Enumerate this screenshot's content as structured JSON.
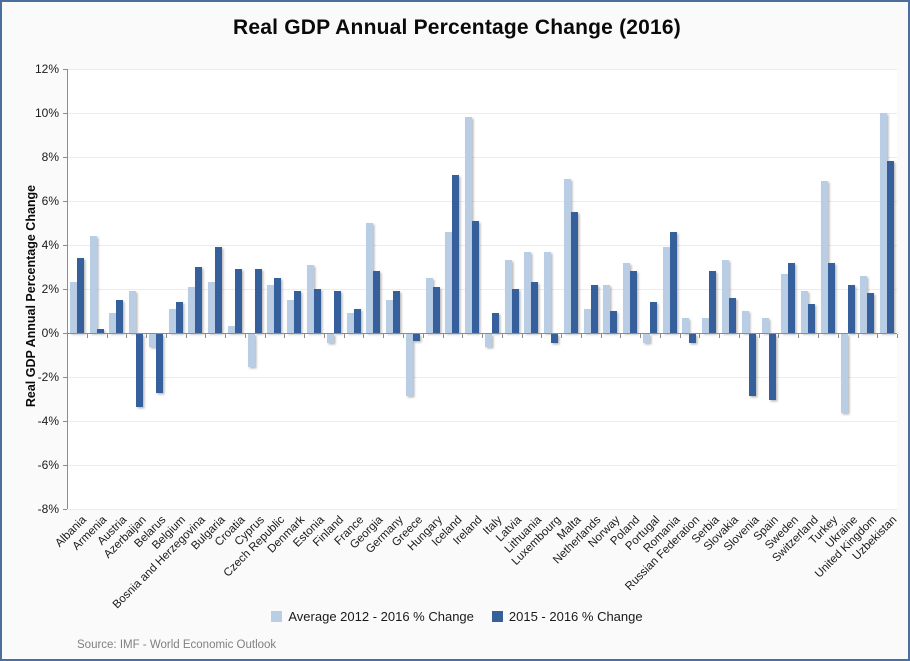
{
  "source_note": "Source: IMF - World Economic Outlook",
  "colors": {
    "background": "#FAFAFA",
    "plot_background": "#FFFFFF",
    "border": "#4A6E9E",
    "grid": "#ECECEC",
    "axis": "#8C8C8C",
    "title_text": "#0A0A0A",
    "source_text": "#808080"
  },
  "chart_data": {
    "type": "bar",
    "title": "Real GDP Annual Percentage Change (2016)",
    "xlabel": "",
    "ylabel": "Real GDP Annual Percentage Change",
    "ylim": [
      -8,
      12
    ],
    "ytick_step": 2,
    "ytick_suffix": "%",
    "grid": true,
    "legend_position": "bottom",
    "categories": [
      "Albania",
      "Armenia",
      "Austria",
      "Azerbaijan",
      "Belarus",
      "Belgium",
      "Bosnia and Herzegovina",
      "Bulgaria",
      "Croatia",
      "Cyprus",
      "Czech Republic",
      "Denmark",
      "Estonia",
      "Finland",
      "France",
      "Georgia",
      "Germany",
      "Greece",
      "Hungary",
      "Iceland",
      "Ireland",
      "Italy",
      "Latvia",
      "Lithuania",
      "Luxembourg",
      "Malta",
      "Netherlands",
      "Norway",
      "Poland",
      "Portugal",
      "Romania",
      "Russian Federation",
      "Serbia",
      "Slovakia",
      "Slovenia",
      "Spain",
      "Sweden",
      "Switzerland",
      "Turkey",
      "Ukraine",
      "United Kingdom",
      "Uzbekistan"
    ],
    "series": [
      {
        "name": "Average 2012 - 2016 % Change",
        "color": "#B9CDE5",
        "values": [
          2.3,
          4.4,
          0.9,
          1.9,
          -0.6,
          1.1,
          2.1,
          2.3,
          0.3,
          -1.5,
          2.2,
          1.5,
          3.1,
          -0.4,
          0.9,
          5.0,
          1.5,
          -2.8,
          2.5,
          4.6,
          9.8,
          -0.6,
          3.3,
          3.7,
          3.7,
          7.0,
          1.1,
          2.2,
          3.2,
          -0.4,
          3.9,
          0.7,
          0.7,
          3.3,
          1.0,
          0.7,
          2.7,
          1.9,
          6.9,
          -3.6,
          2.6,
          10.0
        ]
      },
      {
        "name": "2015 - 2016 % Change",
        "color": "#36609B",
        "values": [
          3.4,
          0.2,
          1.5,
          -3.3,
          -2.7,
          1.4,
          3.0,
          3.9,
          2.9,
          2.9,
          2.5,
          1.9,
          2.0,
          1.9,
          1.1,
          2.8,
          1.9,
          -0.3,
          2.1,
          7.2,
          5.1,
          0.9,
          2.0,
          2.3,
          -0.4,
          5.5,
          2.2,
          1.0,
          2.8,
          1.4,
          4.6,
          -0.4,
          2.8,
          1.6,
          -2.8,
          -3.0,
          3.2,
          1.3,
          3.2,
          2.2,
          1.8,
          7.8
        ]
      }
    ]
  }
}
